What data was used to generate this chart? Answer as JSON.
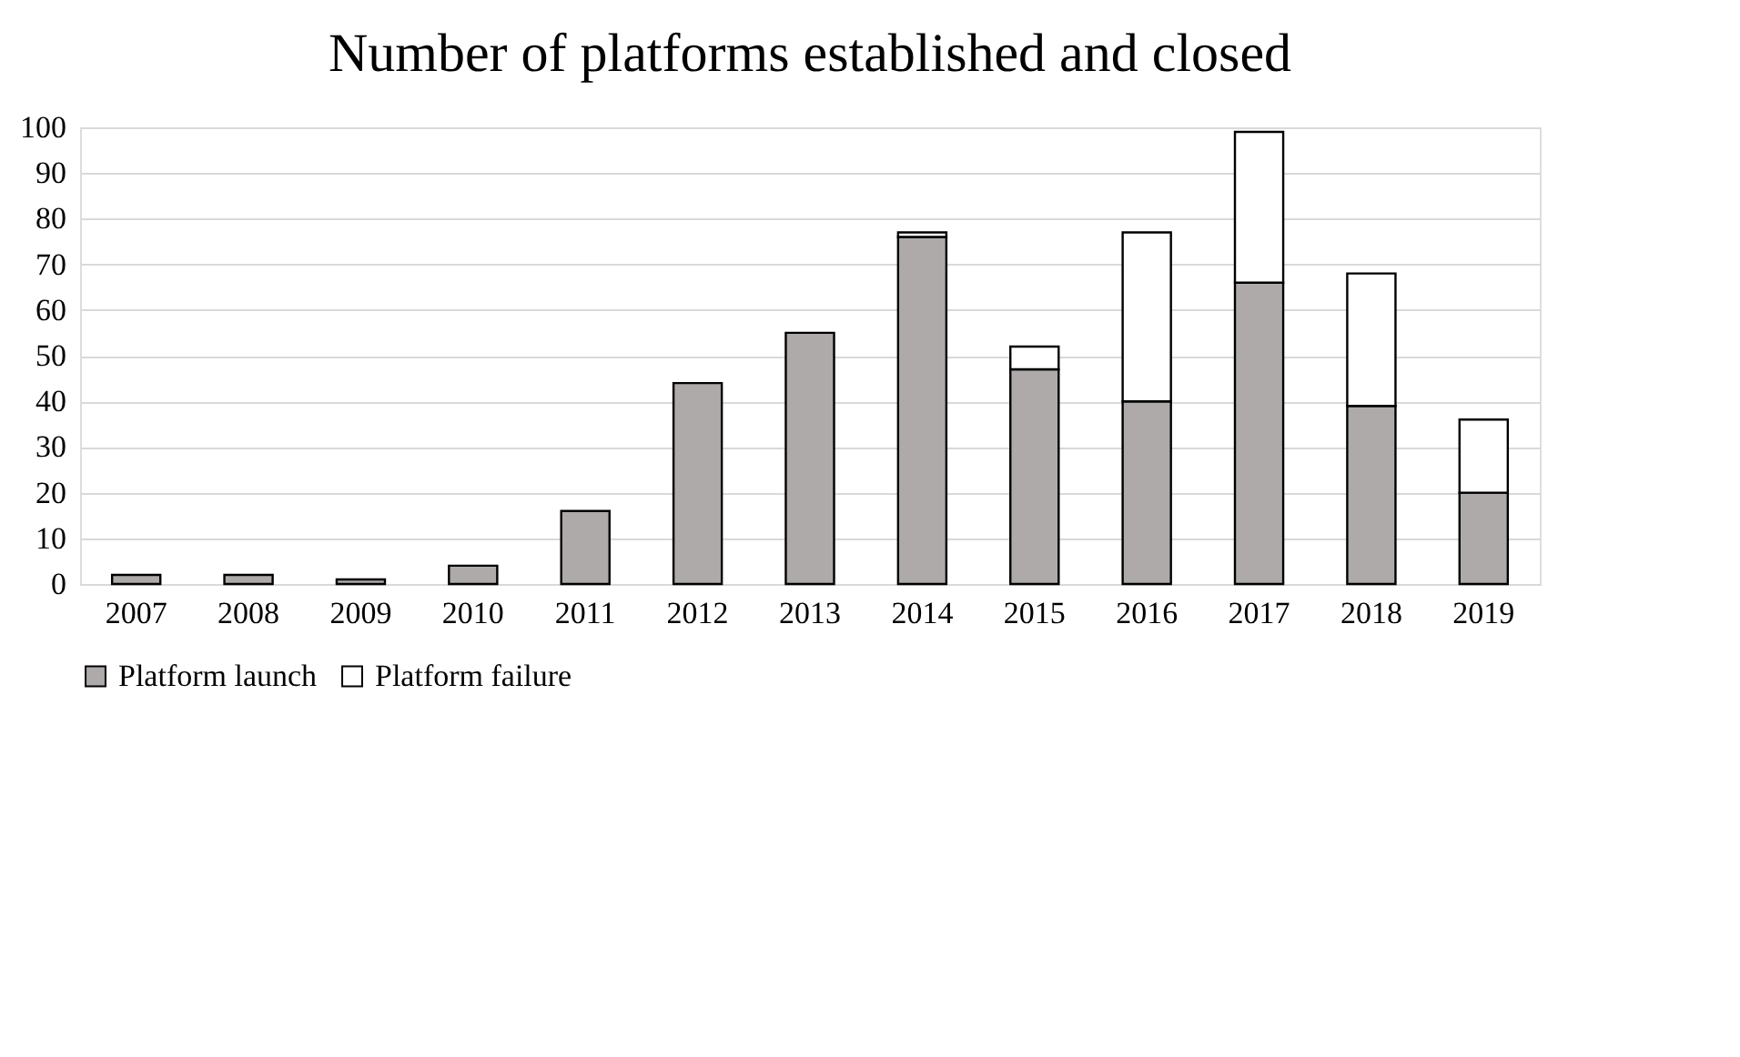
{
  "chart_data": {
    "type": "bar",
    "title": "Number of platforms established and closed",
    "categories": [
      "2007",
      "2008",
      "2009",
      "2010",
      "2011",
      "2012",
      "2013",
      "2014",
      "2015",
      "2016",
      "2017",
      "2018",
      "2019"
    ],
    "series": [
      {
        "name": "Platform launch",
        "color": "#aeaaaa",
        "values": [
          2,
          2,
          1,
          4,
          16,
          44,
          55,
          76,
          47,
          40,
          66,
          39,
          20
        ]
      },
      {
        "name": "Platform failure",
        "color": "#ffffff",
        "values": [
          null,
          null,
          null,
          null,
          null,
          null,
          null,
          1,
          5,
          37,
          33,
          29,
          16
        ]
      }
    ],
    "stacked": true,
    "ylim": [
      0,
      100
    ],
    "yticks": [
      0,
      10,
      20,
      30,
      40,
      50,
      60,
      70,
      80,
      90,
      100
    ],
    "grid": "y",
    "legend": "bottom"
  }
}
